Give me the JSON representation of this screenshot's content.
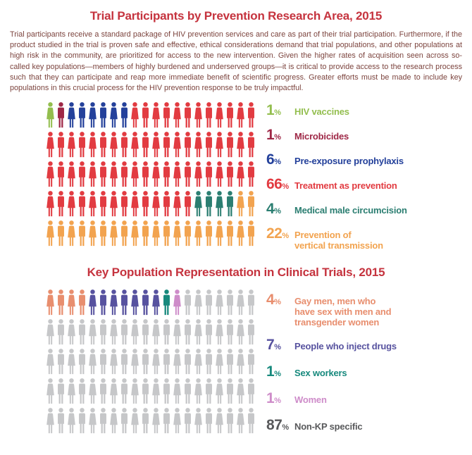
{
  "intro": {
    "text": "Trial participants receive a standard package of HIV prevention services and care as part of their trial participation. Furthermore, if the product studied in the trial is proven safe and effective, ethical considerations demand that trial populations, and other populations at high risk in the community, are prioritized for access to the new intervention. Given the higher rates of acquisition seen across so-called key populations—members of highly burdened and underserved groups—it is critical to provide access to the research process such that they can participate and reap more immediate benefit of scientific progress. Greater efforts must be made to include key populations in this crucial process for the HIV prevention response to be truly impactful."
  },
  "colors": {
    "title_red": "#C5333E",
    "intro_text": "#7C443E"
  },
  "charts": [
    {
      "title": "Trial Participants by Prevention Research Area, 2015",
      "grid": {
        "rows": 5,
        "cols": 20
      },
      "legend": [
        {
          "value": "1",
          "unit": "%",
          "count": 1,
          "color": "#93BE4E",
          "label_lines": [
            "HIV vaccines"
          ]
        },
        {
          "value": "1",
          "unit": "%",
          "count": 1,
          "color": "#9E2746",
          "label_lines": [
            "Microbicides"
          ]
        },
        {
          "value": "6",
          "unit": "%",
          "count": 6,
          "color": "#24419B",
          "label_lines": [
            "Pre-exposure prophylaxis"
          ]
        },
        {
          "value": "66",
          "unit": "%",
          "count": 66,
          "color": "#E23B41",
          "label_lines": [
            "Treatment as prevention"
          ]
        },
        {
          "value": "4",
          "unit": "%",
          "count": 4,
          "color": "#2B7E71",
          "label_lines": [
            "Medical male circumcision"
          ]
        },
        {
          "value": "22",
          "unit": "%",
          "count": 22,
          "color": "#F2A34F",
          "label_lines": [
            "Prevention of",
            "vertical transmission"
          ]
        }
      ]
    },
    {
      "title": "Key Population Representation in Clinical Trials, 2015",
      "grid": {
        "rows": 5,
        "cols": 20
      },
      "legend": [
        {
          "value": "4",
          "unit": "%",
          "count": 4,
          "color": "#E88E6E",
          "label_lines": [
            "Gay men, men who",
            "have sex with men and",
            "transgender women"
          ]
        },
        {
          "value": "7",
          "unit": "%",
          "count": 7,
          "color": "#57529F",
          "label_lines": [
            "People who inject drugs"
          ]
        },
        {
          "value": "1",
          "unit": "%",
          "count": 1,
          "color": "#17897D",
          "label_lines": [
            "Sex workers"
          ]
        },
        {
          "value": "1",
          "unit": "%",
          "count": 1,
          "color": "#CE8CC9",
          "label_lines": [
            "Women"
          ]
        },
        {
          "value": "87",
          "unit": "%",
          "count": 87,
          "color": "#C6C7C9",
          "text_color": "#58595B",
          "label_lines": [
            "Non-KP specific"
          ]
        }
      ]
    }
  ],
  "chart_data": [
    {
      "type": "pictogram",
      "title": "Trial Participants by Prevention Research Area, 2015",
      "unit": "1 person icon = 1% of trial participants",
      "total_icons": 100,
      "grid": {
        "rows": 5,
        "cols": 20
      },
      "categories": [
        "HIV vaccines",
        "Microbicides",
        "Pre-exposure prophylaxis",
        "Treatment as prevention",
        "Medical male circumcision",
        "Prevention of vertical transmission"
      ],
      "values": [
        1,
        1,
        6,
        66,
        4,
        22
      ],
      "colors": [
        "#93BE4E",
        "#9E2746",
        "#24419B",
        "#E23B41",
        "#2B7E71",
        "#F2A34F"
      ],
      "legend_position": "right"
    },
    {
      "type": "pictogram",
      "title": "Key Population Representation in Clinical Trials, 2015",
      "unit": "1 person icon = 1% of clinical trial representation",
      "total_icons": 100,
      "grid": {
        "rows": 5,
        "cols": 20
      },
      "categories": [
        "Gay men, men who have sex with men and transgender women",
        "People who inject drugs",
        "Sex workers",
        "Women",
        "Non-KP specific"
      ],
      "values": [
        4,
        7,
        1,
        1,
        87
      ],
      "colors": [
        "#E88E6E",
        "#57529F",
        "#17897D",
        "#CE8CC9",
        "#C6C7C9"
      ],
      "legend_position": "right"
    }
  ]
}
